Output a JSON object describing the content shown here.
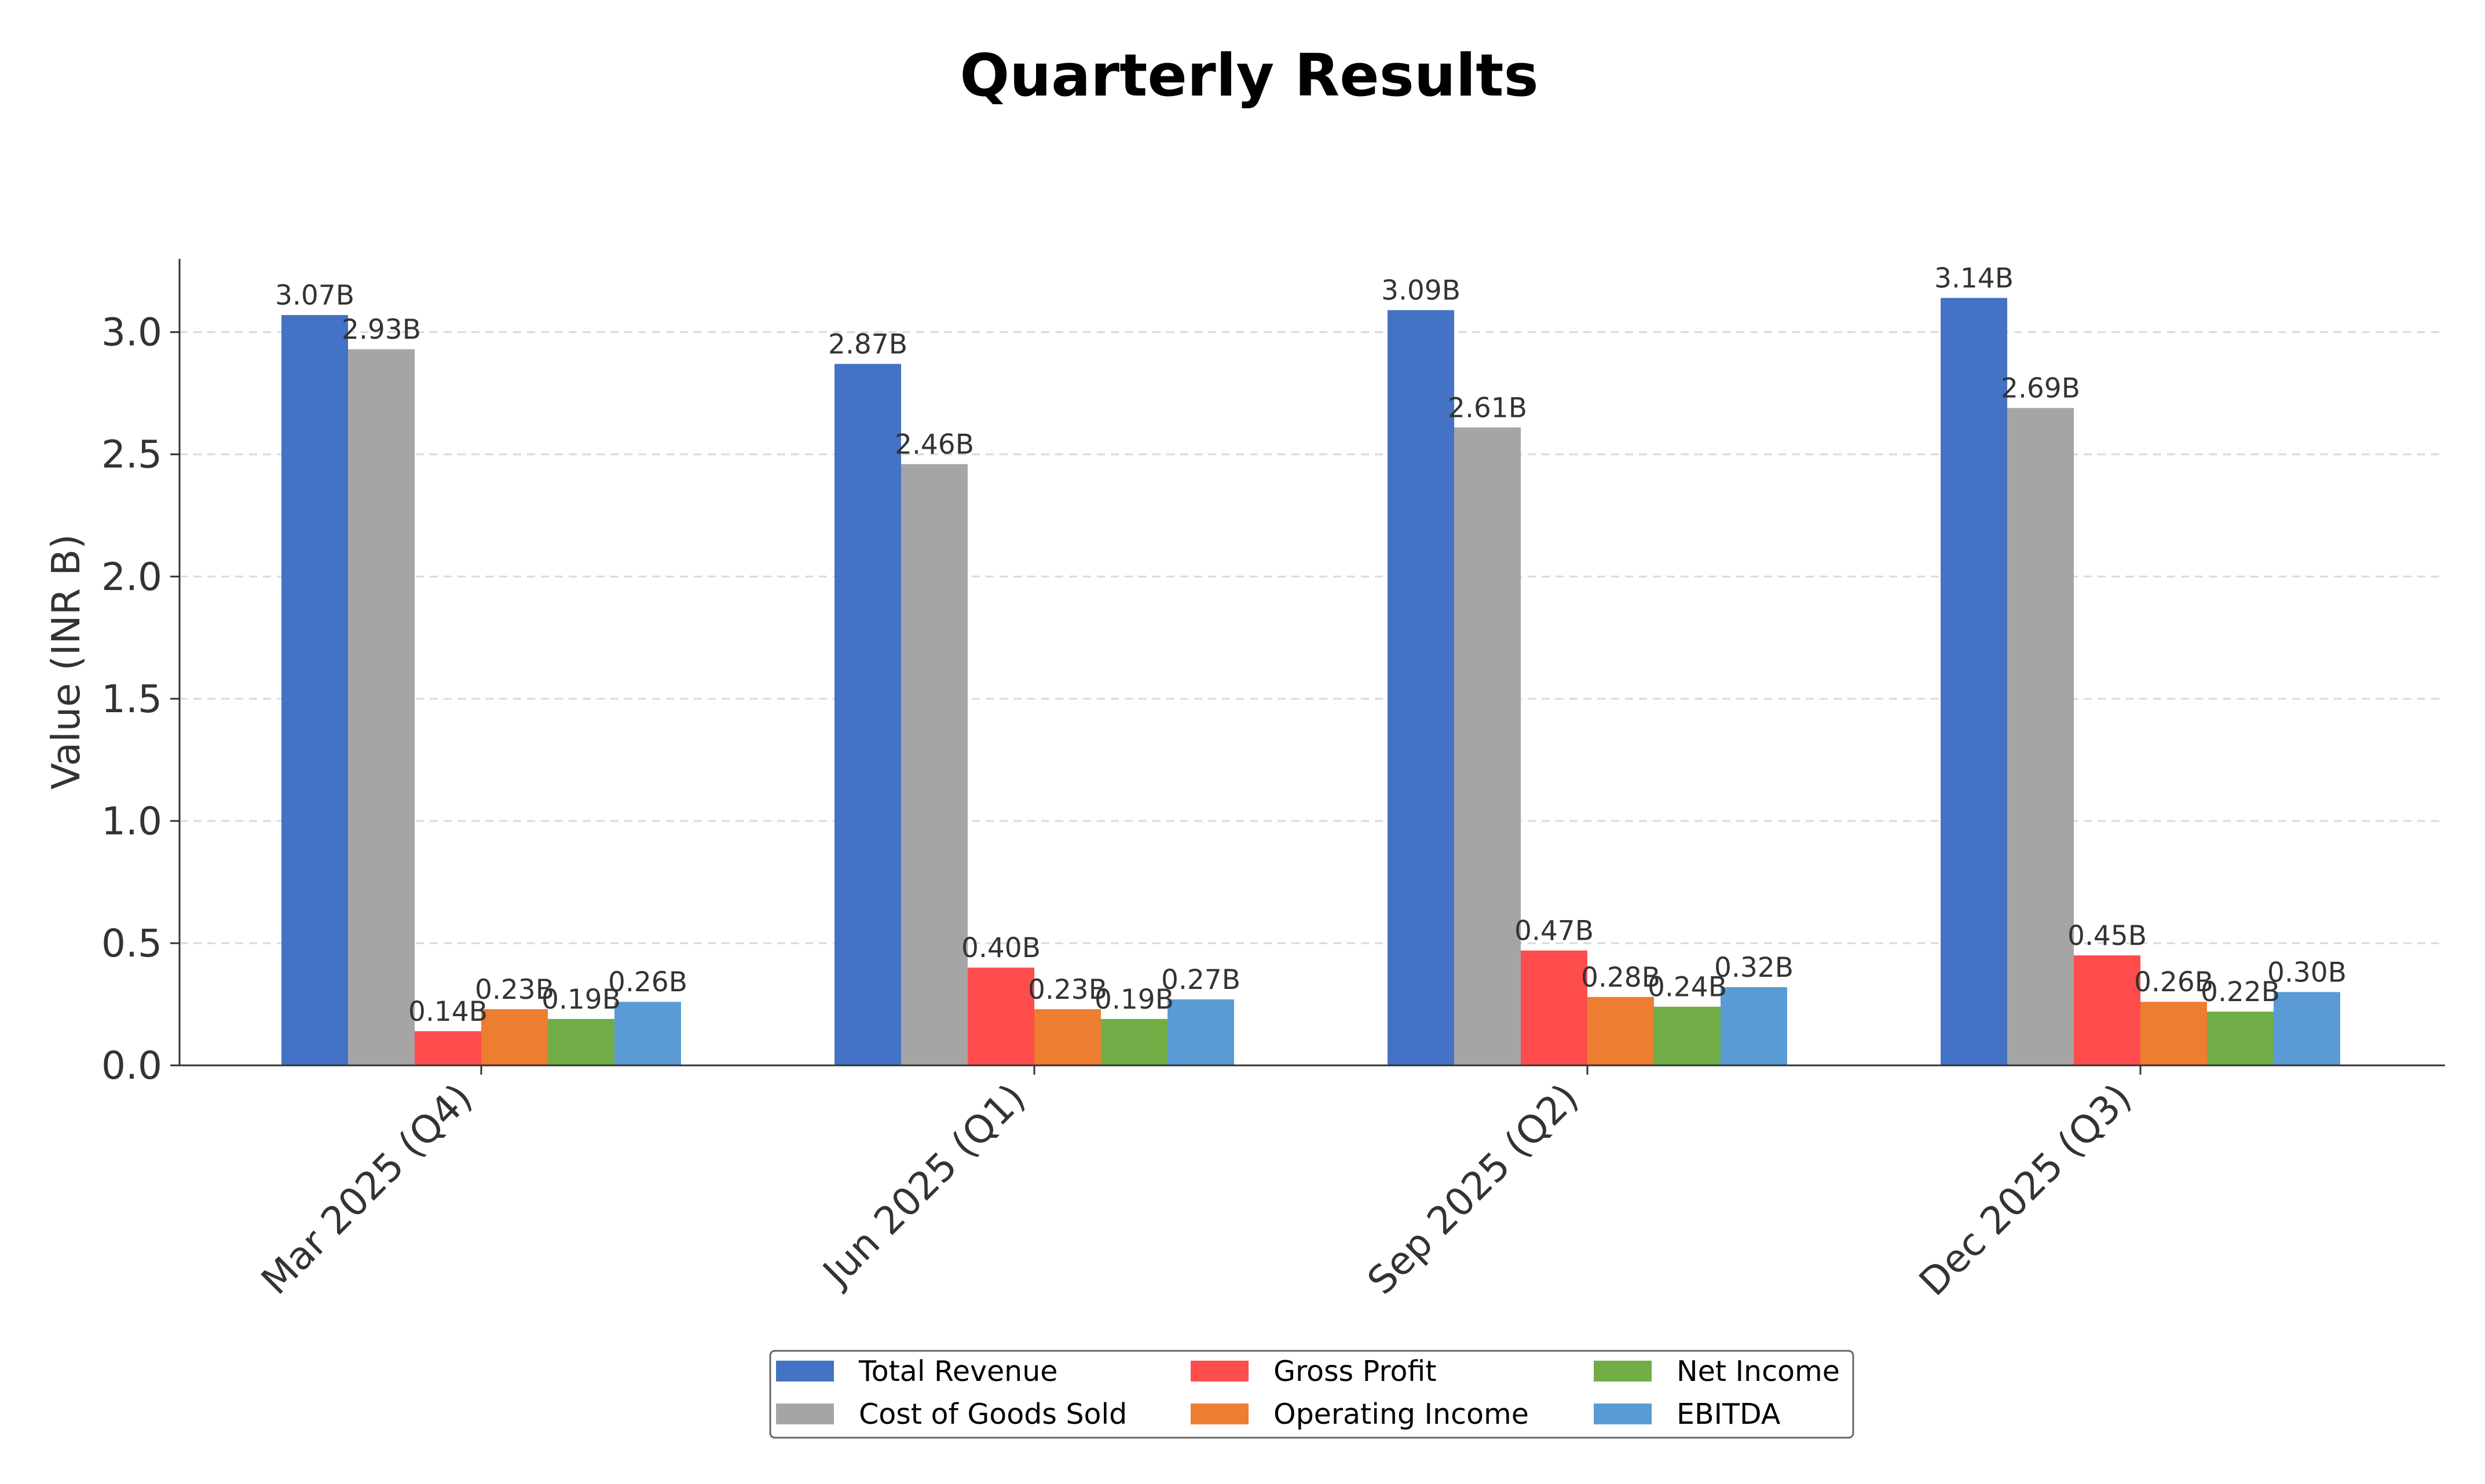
{
  "chart_data": {
    "type": "bar",
    "title": "Quarterly Results",
    "xlabel": "",
    "ylabel": "Value (INR B)",
    "ylim": [
      0,
      3.3
    ],
    "yticks": [
      0.0,
      0.5,
      1.0,
      1.5,
      2.0,
      2.5,
      3.0
    ],
    "ytick_labels": [
      "0.0",
      "0.5",
      "1.0",
      "1.5",
      "2.0",
      "2.5",
      "3.0"
    ],
    "grid": true,
    "legend_position": "bottom-center",
    "categories": [
      "Mar 2025 (Q4)",
      "Jun 2025 (Q1)",
      "Sep 2025 (Q2)",
      "Dec 2025 (Q3)"
    ],
    "series": [
      {
        "name": "Total Revenue",
        "color": "#4472C4",
        "values": [
          3.07,
          2.87,
          3.09,
          3.14
        ],
        "labels": [
          "3.07B",
          "2.87B",
          "3.09B",
          "3.14B"
        ]
      },
      {
        "name": "Cost of Goods Sold",
        "color": "#A5A5A5",
        "values": [
          2.93,
          2.46,
          2.61,
          2.69
        ],
        "labels": [
          "2.93B",
          "2.46B",
          "2.61B",
          "2.69B"
        ]
      },
      {
        "name": "Gross Profit",
        "color": "#FF4C4C",
        "values": [
          0.14,
          0.4,
          0.47,
          0.45
        ],
        "labels": [
          "0.14B",
          "0.40B",
          "0.47B",
          "0.45B"
        ]
      },
      {
        "name": "Operating Income",
        "color": "#ED7D31",
        "values": [
          0.23,
          0.23,
          0.28,
          0.26
        ],
        "labels": [
          "0.23B",
          "0.23B",
          "0.28B",
          "0.26B"
        ]
      },
      {
        "name": "Net Income",
        "color": "#70AD47",
        "values": [
          0.19,
          0.19,
          0.24,
          0.22
        ],
        "labels": [
          "0.19B",
          "0.19B",
          "0.24B",
          "0.22B"
        ]
      },
      {
        "name": "EBITDA",
        "color": "#5B9BD5",
        "values": [
          0.26,
          0.27,
          0.32,
          0.3
        ],
        "labels": [
          "0.26B",
          "0.27B",
          "0.32B",
          "0.30B"
        ]
      }
    ]
  }
}
